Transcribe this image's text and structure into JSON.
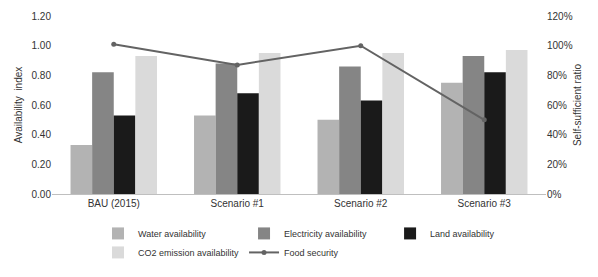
{
  "chart_data": {
    "type": "bar",
    "categories": [
      "BAU (2015)",
      "Scenario #1",
      "Scenario #2",
      "Scenario #3"
    ],
    "ylabel": "Availability  index",
    "y2label": "Self-sufficient ratio",
    "ylim": [
      0,
      1.2
    ],
    "yticks": [
      {
        "value": 0,
        "label": "0.00"
      },
      {
        "value": 0.2,
        "label": "0.20"
      },
      {
        "value": 0.4,
        "label": "0.40"
      },
      {
        "value": 0.6,
        "label": "0.60"
      },
      {
        "value": 0.8,
        "label": "0.80"
      },
      {
        "value": 1,
        "label": "1.00"
      },
      {
        "value": 1.2,
        "label": "1.20"
      }
    ],
    "y2lim": [
      0,
      120
    ],
    "y2ticks": [
      {
        "value": 0,
        "label": "0%"
      },
      {
        "value": 20,
        "label": "20%"
      },
      {
        "value": 40,
        "label": "40%"
      },
      {
        "value": 60,
        "label": "60%"
      },
      {
        "value": 80,
        "label": "80%"
      },
      {
        "value": 100,
        "label": "100%"
      },
      {
        "value": 120,
        "label": "120%"
      }
    ],
    "grid": false,
    "legend": "bottom",
    "series": [
      {
        "name": "Water availability",
        "type": "bar",
        "color": "#b3b3b3",
        "values": [
          0.33,
          0.53,
          0.5,
          0.75
        ]
      },
      {
        "name": "Electricity availability",
        "type": "bar",
        "color": "#858585",
        "values": [
          0.82,
          0.88,
          0.86,
          0.93
        ]
      },
      {
        "name": "Land availability",
        "type": "bar",
        "color": "#1a1a1a",
        "values": [
          0.53,
          0.68,
          0.63,
          0.82
        ]
      },
      {
        "name": "CO2 emission availability",
        "type": "bar",
        "color": "#dadada",
        "values": [
          0.93,
          0.95,
          0.95,
          0.97
        ]
      },
      {
        "name": "Food security",
        "type": "line",
        "axis": "y2",
        "color": "#636363",
        "marker": "circle",
        "values": [
          101,
          87,
          100,
          50
        ]
      }
    ]
  }
}
